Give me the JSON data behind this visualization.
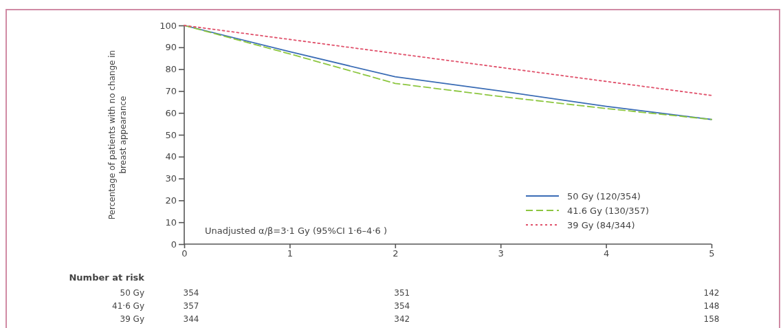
{
  "chart_data": {
    "type": "line",
    "ylabel": "Percentage of patients with no change in breast appearance",
    "x": [
      0,
      1,
      2,
      3,
      4,
      5
    ],
    "series": [
      {
        "name": "50 Gy (120/354)",
        "color": "#3a6cb5",
        "line_style": "solid",
        "values": [
          100,
          88,
          76.5,
          70,
          63,
          57
        ]
      },
      {
        "name": "41.6 Gy (130/357)",
        "color": "#8cc63f",
        "line_style": "dashed",
        "values": [
          100,
          87,
          73.5,
          67.5,
          62,
          57
        ]
      },
      {
        "name": "39 Gy (84/344)",
        "color": "#e0506a",
        "line_style": "dotted",
        "values": [
          100,
          null,
          null,
          null,
          null,
          68
        ]
      }
    ],
    "xlim": [
      0,
      5
    ],
    "xticks": [
      0,
      1,
      2,
      3,
      4,
      5
    ],
    "ylim": [
      0,
      100
    ],
    "yticks": [
      0,
      10,
      20,
      30,
      40,
      50,
      60,
      70,
      80,
      90,
      100
    ],
    "grid": false,
    "legend": "bottom right",
    "marker": "none",
    "annotations": [
      "Unadjusted α/β=3·1 Gy (95%CI 1·6–4·6 )",
      "Number at risk",
      "50 Gy",
      "354",
      "351",
      "142",
      "41·6 Gy",
      "357",
      "354",
      "148",
      "39 Gy",
      "344",
      "342",
      "158"
    ]
  }
}
